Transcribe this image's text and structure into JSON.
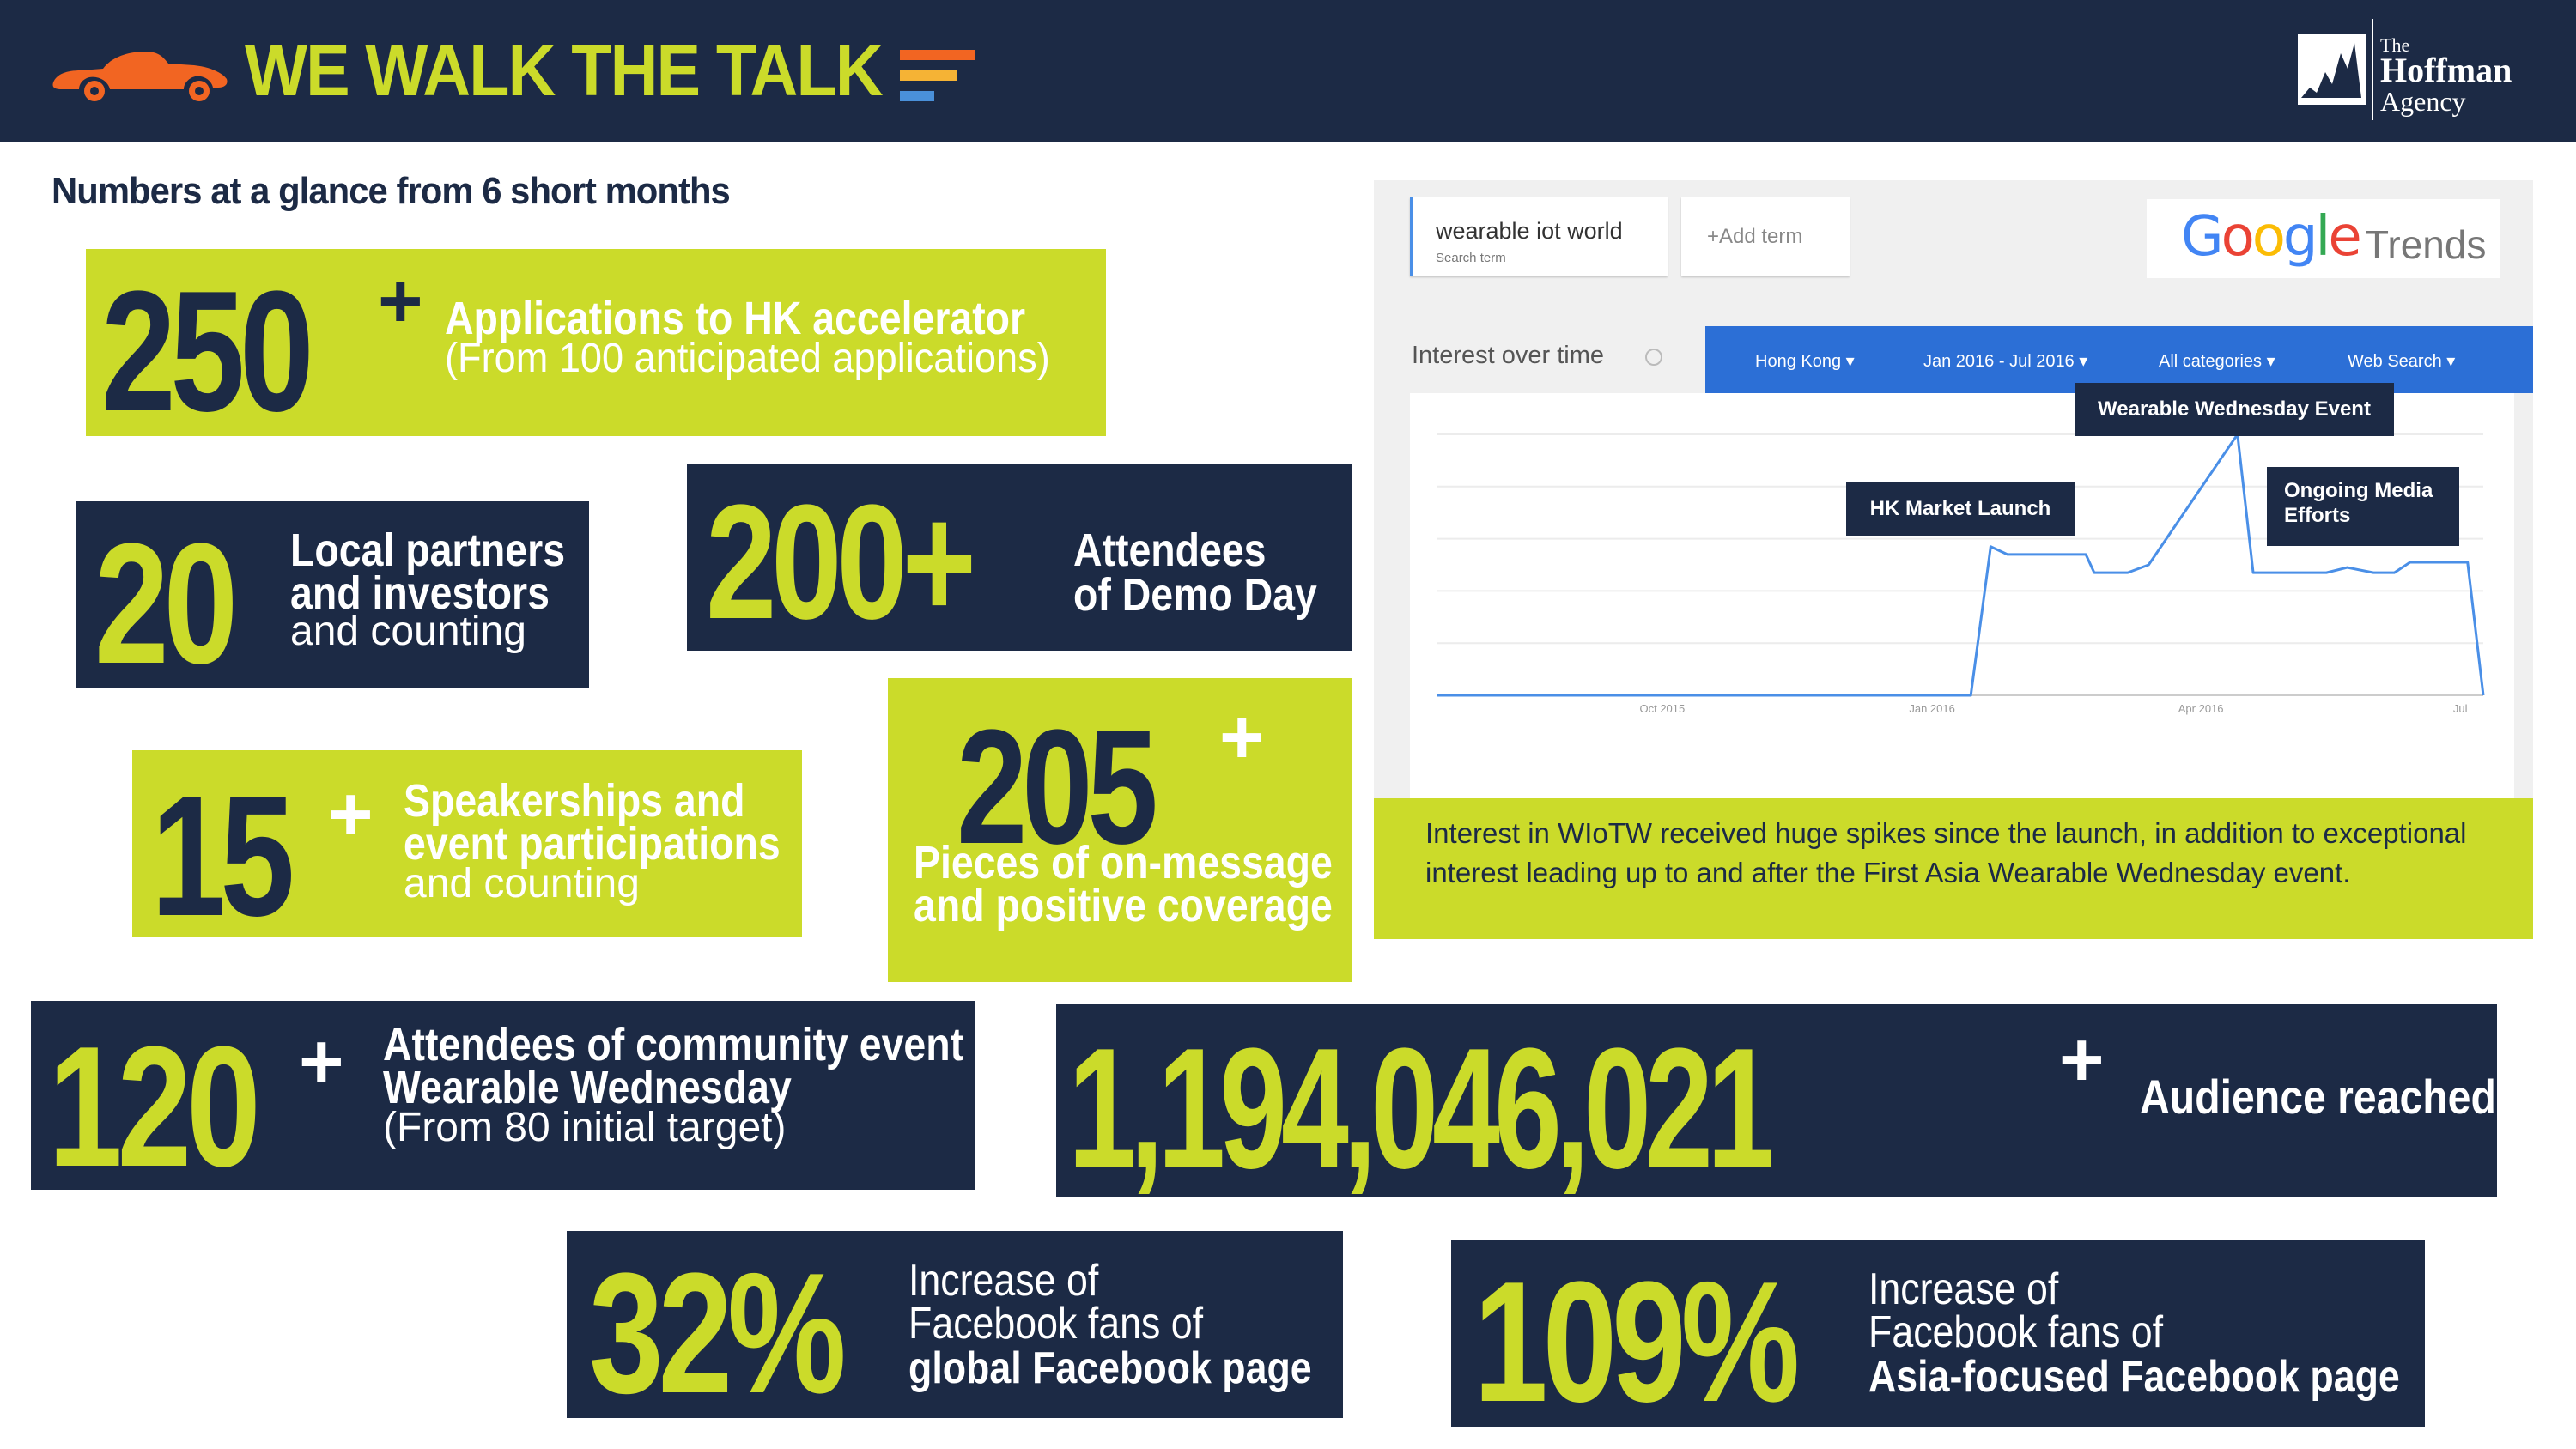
{
  "header": {
    "title": "WE WALK THE TALK",
    "logo_the": "The",
    "logo_hoffman": "Hoffman",
    "logo_agency": "Agency",
    "stripe_colors": [
      "#f26522",
      "#f5b335",
      "#4a90d9"
    ]
  },
  "subtitle": "Numbers at a glance from 6 short months",
  "stats": {
    "applications": {
      "number": "250",
      "sup": "+",
      "line1": "Applications to HK accelerator",
      "line2": "(From 100 anticipated applications)"
    },
    "partners": {
      "number": "20",
      "line1": "Local partners",
      "line2": "and investors",
      "line3": "and counting"
    },
    "demo_day": {
      "number": "200+",
      "line1": "Attendees",
      "line2": "of Demo Day"
    },
    "speakerships": {
      "number": "15",
      "sup": "+",
      "line1": "Speakerships and",
      "line2": "event participations",
      "line3": "and counting"
    },
    "coverage": {
      "number": "205",
      "sup": "+",
      "line1": "Pieces of on-message",
      "line2": "and positive coverage"
    },
    "community": {
      "number": "120",
      "sup": "+",
      "line1": "Attendees of community event",
      "line2": "Wearable Wednesday",
      "line3": "(From 80 initial target)"
    },
    "audience": {
      "number": "1,194,046,021",
      "sup": "+",
      "label": "Audience reached"
    },
    "global_fb": {
      "number": "32%",
      "line1": "Increase of",
      "line2": "Facebook fans of",
      "line3": "global Facebook page"
    },
    "asia_fb": {
      "number": "109%",
      "line1": "Increase of",
      "line2": "Facebook fans of",
      "line3": "Asia-focused Facebook page"
    }
  },
  "trends": {
    "search_term": "wearable iot world",
    "search_term_caption": "Search term",
    "add_term": "+Add term",
    "brand_google": "Google",
    "brand_trends": "Trends",
    "section_label": "Interest over time",
    "info_icon": "info-icon",
    "filters": [
      "Hong Kong",
      "Jan 2016 - Jul 2016",
      "All categories",
      "Web Search"
    ],
    "filter_bar_color": "#2c6fd6",
    "callouts": {
      "wearable_wednesday": "Wearable Wednesday Event",
      "hk_launch": "HK Market Launch",
      "ongoing": "Ongoing Media Efforts"
    },
    "embed_icon": "</>",
    "description": "Interest in WIoTW received huge spikes since the launch, in addition to exceptional interest leading up to and after the First Asia Wearable Wednesday event."
  },
  "chart_data": {
    "type": "line",
    "x": [
      "Oct 2015",
      "Jan 2016",
      "Apr 2016",
      "Jul"
    ],
    "points": [
      {
        "t": 0.0,
        "v": 0
      },
      {
        "t": 0.51,
        "v": 0
      },
      {
        "t": 0.529,
        "v": 57
      },
      {
        "t": 0.545,
        "v": 54
      },
      {
        "t": 0.62,
        "v": 54
      },
      {
        "t": 0.628,
        "v": 47
      },
      {
        "t": 0.66,
        "v": 47
      },
      {
        "t": 0.68,
        "v": 50
      },
      {
        "t": 0.765,
        "v": 100
      },
      {
        "t": 0.78,
        "v": 47
      },
      {
        "t": 0.85,
        "v": 47
      },
      {
        "t": 0.87,
        "v": 49
      },
      {
        "t": 0.895,
        "v": 47
      },
      {
        "t": 0.915,
        "v": 47
      },
      {
        "t": 0.93,
        "v": 51
      },
      {
        "t": 0.985,
        "v": 51
      },
      {
        "t": 1.0,
        "v": 0
      }
    ],
    "tick_labels": [
      "Oct 2015",
      "Jan 2016",
      "Apr 2016",
      "Jul"
    ],
    "tick_positions": [
      0.215,
      0.473,
      0.73,
      0.978
    ],
    "ylim": [
      0,
      100
    ],
    "grid": true,
    "line_color": "#4a8fe7"
  }
}
